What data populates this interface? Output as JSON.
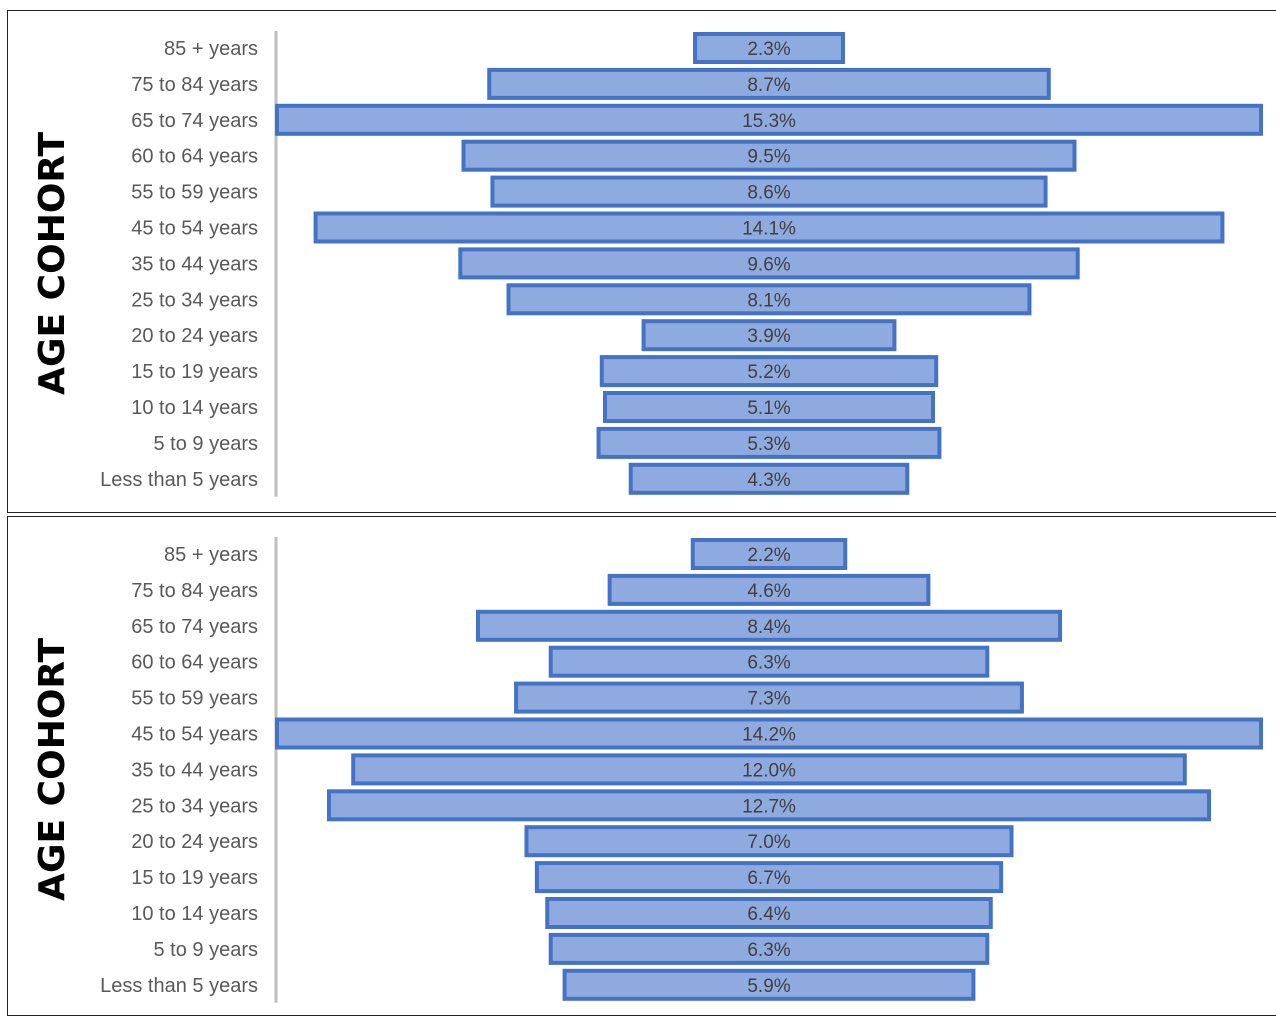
{
  "chart_data": [
    {
      "type": "bar",
      "orientation": "horizontal-centered",
      "ylabel": "AGE COHORT",
      "categories": [
        "85 + years",
        "75 to 84 years",
        "65 to 74 years",
        "60 to 64 years",
        "55 to 59 years",
        "45 to 54 years",
        "35 to 44 years",
        "25 to 34 years",
        "20 to 24 years",
        "15 to 19 years",
        "10 to 14 years",
        "5 to 9 years",
        "Less than 5 years"
      ],
      "values": [
        2.3,
        8.7,
        15.3,
        9.5,
        8.6,
        14.1,
        9.6,
        8.1,
        3.9,
        5.2,
        5.1,
        5.3,
        4.3
      ],
      "value_labels": [
        "2.3%",
        "8.7%",
        "15.3%",
        "9.5%",
        "8.6%",
        "14.1%",
        "9.6%",
        "8.1%",
        "3.9%",
        "5.2%",
        "5.1%",
        "5.3%",
        "4.3%"
      ],
      "unit": "%",
      "color": "#8eaadf",
      "border_color": "#4472c4"
    },
    {
      "type": "bar",
      "orientation": "horizontal-centered",
      "ylabel": "AGE COHORT",
      "categories": [
        "85 + years",
        "75 to 84 years",
        "65 to 74 years",
        "60 to 64 years",
        "55 to 59 years",
        "45 to 54 years",
        "35 to 44 years",
        "25 to 34 years",
        "20 to 24 years",
        "15 to 19 years",
        "10 to 14 years",
        "5 to 9 years",
        "Less than 5 years"
      ],
      "values": [
        2.2,
        4.6,
        8.4,
        6.3,
        7.3,
        14.2,
        12.0,
        12.7,
        7.0,
        6.7,
        6.4,
        6.3,
        5.9
      ],
      "value_labels": [
        "2.2%",
        "4.6%",
        "8.4%",
        "6.3%",
        "7.3%",
        "14.2%",
        "12.0%",
        "12.7%",
        "7.0%",
        "6.7%",
        "6.4%",
        "6.3%",
        "5.9%"
      ],
      "unit": "%",
      "color": "#8eaadf",
      "border_color": "#4472c4"
    }
  ]
}
